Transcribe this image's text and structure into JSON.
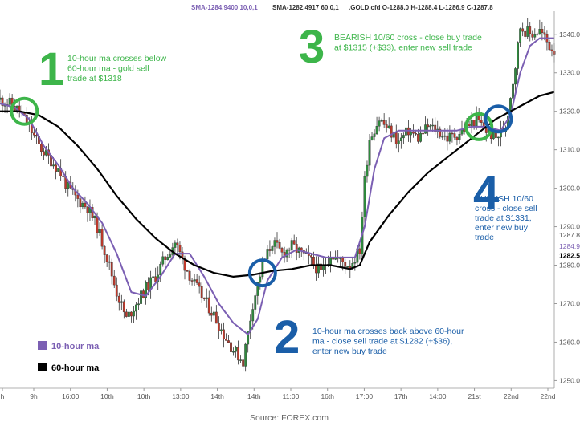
{
  "chart_data": {
    "type": "candlestick",
    "header": [
      {
        "text": "SMA-1284.9400 10,0,1",
        "color": "#7b5fb3"
      },
      {
        "text": "SMA-1282.4917 60,0,1",
        "color": "#333333"
      },
      {
        "text": ".GOLD.cfd O-1288.0 H-1288.4 L-1286.9 C-1287.8",
        "color": "#333333"
      }
    ],
    "x_ticks": [
      "h",
      "9h",
      "16:00",
      "10th",
      "10th",
      "13:00",
      "14th",
      "14th",
      "11:00",
      "16th",
      "17:00",
      "17th",
      "14:00",
      "21st",
      "22nd",
      "22nd"
    ],
    "y_ticks": [
      1250.0,
      1260.0,
      1270.0,
      1280.0,
      1290.0,
      1300.0,
      1310.0,
      1320.0,
      1330.0,
      1340.0
    ],
    "ylim": [
      1248,
      1346
    ],
    "right_labels": [
      {
        "value": 1287.8,
        "text": "1287.8",
        "color": "#555555",
        "bold": false
      },
      {
        "value": 1284.9,
        "text": "1284.9",
        "color": "#7b5fb3",
        "bold": false
      },
      {
        "value": 1282.5,
        "text": "1282.5",
        "color": "#000000",
        "bold": true
      }
    ],
    "price_path": [
      [
        0,
        1323
      ],
      [
        4,
        1322
      ],
      [
        8,
        1320
      ],
      [
        12,
        1316
      ],
      [
        16,
        1311
      ],
      [
        20,
        1308
      ],
      [
        24,
        1305
      ],
      [
        28,
        1300
      ],
      [
        32,
        1297
      ],
      [
        36,
        1295
      ],
      [
        40,
        1290
      ],
      [
        44,
        1282
      ],
      [
        48,
        1273
      ],
      [
        52,
        1266
      ],
      [
        56,
        1270
      ],
      [
        60,
        1274
      ],
      [
        64,
        1277
      ],
      [
        68,
        1282
      ],
      [
        72,
        1286
      ],
      [
        76,
        1280
      ],
      [
        80,
        1275
      ],
      [
        84,
        1271
      ],
      [
        88,
        1267
      ],
      [
        92,
        1262
      ],
      [
        96,
        1258
      ],
      [
        100,
        1255
      ],
      [
        104,
        1270
      ],
      [
        108,
        1280
      ],
      [
        112,
        1286
      ],
      [
        116,
        1283
      ],
      [
        120,
        1285
      ],
      [
        124,
        1283
      ],
      [
        128,
        1281
      ],
      [
        132,
        1278
      ],
      [
        136,
        1283
      ],
      [
        140,
        1281
      ],
      [
        144,
        1280
      ],
      [
        148,
        1284
      ],
      [
        150,
        1302
      ],
      [
        152,
        1313
      ],
      [
        156,
        1318
      ],
      [
        160,
        1315
      ],
      [
        164,
        1312
      ],
      [
        168,
        1315
      ],
      [
        172,
        1313
      ],
      [
        176,
        1316
      ],
      [
        180,
        1315
      ],
      [
        184,
        1313
      ],
      [
        188,
        1314
      ],
      [
        192,
        1316
      ],
      [
        196,
        1318
      ],
      [
        200,
        1315
      ],
      [
        204,
        1313
      ],
      [
        208,
        1316
      ],
      [
        212,
        1332
      ],
      [
        214,
        1342
      ],
      [
        218,
        1340
      ],
      [
        222,
        1341
      ],
      [
        226,
        1337
      ],
      [
        228,
        1336
      ]
    ],
    "series": [
      {
        "name": "10-hour ma",
        "color": "#7b5fb3",
        "points": [
          [
            0,
            1322
          ],
          [
            6,
            1321
          ],
          [
            12,
            1318
          ],
          [
            18,
            1311
          ],
          [
            24,
            1306
          ],
          [
            30,
            1300
          ],
          [
            36,
            1296
          ],
          [
            42,
            1291
          ],
          [
            48,
            1283
          ],
          [
            54,
            1273
          ],
          [
            60,
            1272
          ],
          [
            66,
            1277
          ],
          [
            72,
            1283
          ],
          [
            78,
            1283
          ],
          [
            84,
            1277
          ],
          [
            90,
            1270
          ],
          [
            96,
            1265
          ],
          [
            102,
            1262
          ],
          [
            106,
            1266
          ],
          [
            110,
            1276
          ],
          [
            116,
            1282
          ],
          [
            122,
            1284
          ],
          [
            128,
            1283
          ],
          [
            134,
            1282
          ],
          [
            140,
            1282
          ],
          [
            146,
            1282
          ],
          [
            150,
            1290
          ],
          [
            154,
            1305
          ],
          [
            158,
            1313
          ],
          [
            164,
            1315
          ],
          [
            170,
            1315
          ],
          [
            176,
            1315
          ],
          [
            182,
            1315
          ],
          [
            188,
            1315
          ],
          [
            194,
            1316
          ],
          [
            200,
            1316
          ],
          [
            206,
            1315
          ],
          [
            210,
            1319
          ],
          [
            214,
            1330
          ],
          [
            218,
            1337
          ],
          [
            222,
            1339
          ],
          [
            228,
            1339
          ]
        ]
      },
      {
        "name": "60-hour ma",
        "color": "#000000",
        "points": [
          [
            0,
            1320
          ],
          [
            8,
            1320
          ],
          [
            16,
            1319
          ],
          [
            24,
            1316
          ],
          [
            32,
            1311
          ],
          [
            40,
            1305
          ],
          [
            48,
            1298
          ],
          [
            56,
            1292
          ],
          [
            64,
            1287
          ],
          [
            72,
            1283
          ],
          [
            80,
            1280
          ],
          [
            88,
            1278
          ],
          [
            96,
            1277
          ],
          [
            104,
            1277.5
          ],
          [
            112,
            1278.5
          ],
          [
            120,
            1279
          ],
          [
            128,
            1280
          ],
          [
            136,
            1280
          ],
          [
            144,
            1279
          ],
          [
            148,
            1280
          ],
          [
            152,
            1286
          ],
          [
            160,
            1293
          ],
          [
            168,
            1299
          ],
          [
            176,
            1304
          ],
          [
            184,
            1308
          ],
          [
            192,
            1312
          ],
          [
            198,
            1315
          ],
          [
            204,
            1318
          ],
          [
            210,
            1320
          ],
          [
            216,
            1322
          ],
          [
            222,
            1324
          ],
          [
            228,
            1325
          ]
        ]
      }
    ],
    "annotations": [
      {
        "number": "1",
        "number_color": "#3db54a",
        "circle_color": "#3db54a",
        "circle_at": [
          10,
          1320
        ],
        "lines": [
          "10-hour ma crosses below",
          "60-hour ma - gold sell",
          "trade at $1318"
        ],
        "text_color": "#3db54a"
      },
      {
        "number": "2",
        "number_color": "#1a5ea8",
        "circle_color": "#1a5ea8",
        "circle_at": [
          108,
          1278
        ],
        "lines": [
          "10-hour ma crosses back above 60-hour",
          "ma - close sell trade at $1282 (+$36),",
          "enter new buy trade"
        ],
        "text_color": "#1a5ea8"
      },
      {
        "number": "3",
        "number_color": "#3db54a",
        "circle_color": "#3db54a",
        "circle_at": null,
        "lines": [
          "BEARISH 10/60 cross - close buy trade",
          "at $1315 (+$33), enter new sell trade"
        ],
        "text_color": "#3db54a"
      },
      {
        "number": "4",
        "number_color": "#1a5ea8",
        "circle_color": "#1a5ea8",
        "circle_at": null,
        "lines": [
          "BULLISH 10/60",
          "cross - close sell",
          "trade at $1331,",
          "enter new buy",
          "trade"
        ],
        "text_color": "#1a5ea8"
      }
    ],
    "extra_circles": [
      {
        "color": "#3db54a",
        "at": [
          197,
          1316
        ]
      },
      {
        "color": "#1a5ea8",
        "at": [
          205,
          1318
        ]
      }
    ],
    "legend": [
      {
        "name": "10-hour ma",
        "color": "#7b5fb3",
        "text_color": "#7b5fb3"
      },
      {
        "name": "60-hour ma",
        "color": "#000000",
        "text_color": "#000000"
      }
    ],
    "source": "Source: FOREX.com",
    "candle_colors": {
      "up": "#2e8b3d",
      "down": "#c0392b"
    }
  }
}
